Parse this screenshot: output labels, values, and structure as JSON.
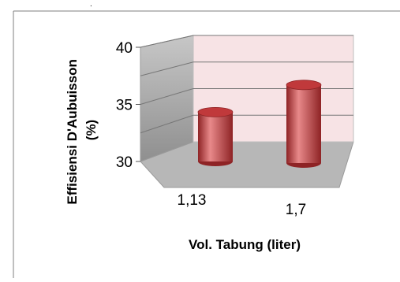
{
  "chart_data": {
    "type": "bar",
    "style": "3d-cylinder",
    "categories": [
      "1,13",
      "1,7"
    ],
    "values": [
      34.8,
      37.6
    ],
    "ylabel_lines": [
      "Effisiensi D'Aubuisson",
      "(%)"
    ],
    "xlabel": "Vol. Tabung (liter)",
    "yticks": [
      "30",
      "35",
      "40"
    ],
    "ylim": [
      30,
      40
    ],
    "grid": true,
    "colors": {
      "bar": "#c0393b",
      "bar_dark": "#8e2325",
      "bar_light": "#e8898a",
      "back_wall": "#f7e3e5",
      "side_wall": "#a9a9a9",
      "floor": "#b5b5b5"
    }
  }
}
